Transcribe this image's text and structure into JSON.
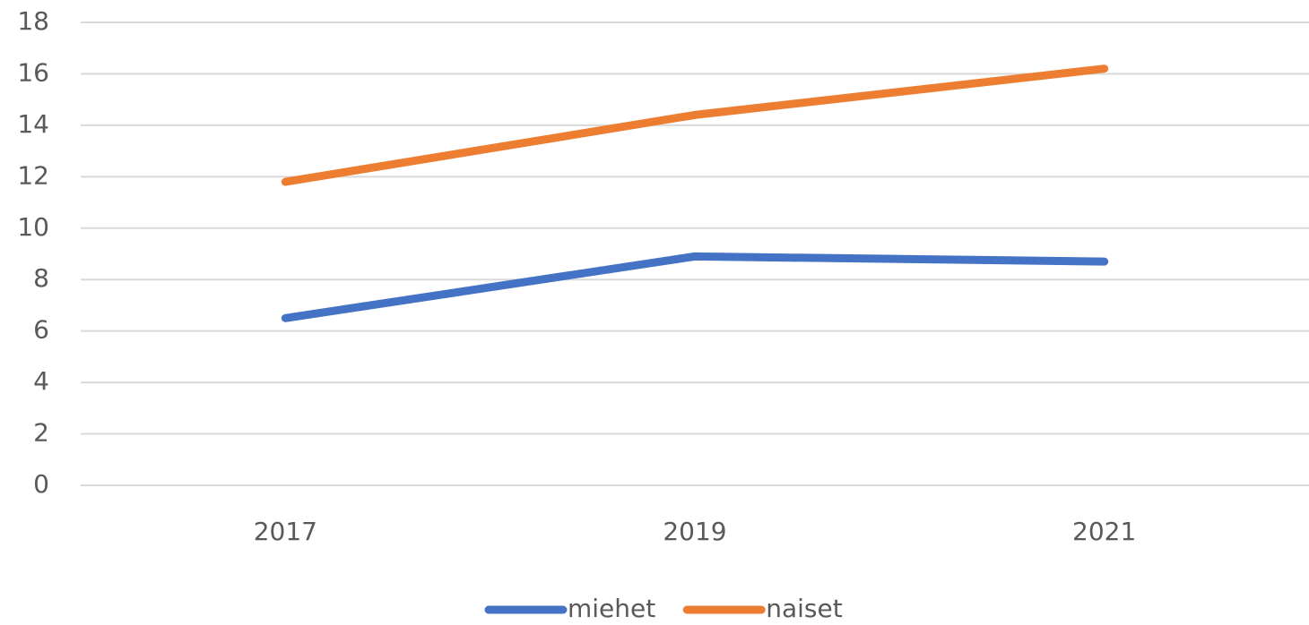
{
  "chart_data": {
    "type": "line",
    "categories": [
      "2017",
      "2019",
      "2021"
    ],
    "series": [
      {
        "name": "miehet",
        "color": "#4472c4",
        "values": [
          6.5,
          8.9,
          8.7
        ]
      },
      {
        "name": "naiset",
        "color": "#ed7d31",
        "values": [
          11.8,
          14.4,
          16.2
        ]
      }
    ],
    "ylim": [
      0,
      18
    ],
    "yticks": [
      0,
      2,
      4,
      6,
      8,
      10,
      12,
      14,
      16,
      18
    ],
    "grid": true,
    "legend": "bottom"
  }
}
